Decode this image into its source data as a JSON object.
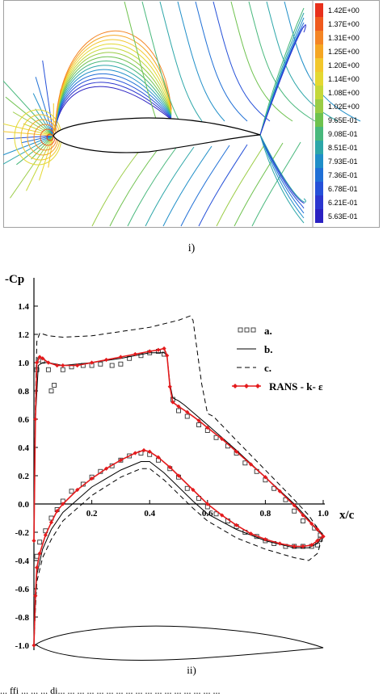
{
  "figure": {
    "caption_i": "i)",
    "caption_ii": "ii)",
    "bottom_caption": "... ffi ... ... ... di... ... ... ... ... ... ... ... ... ... ... ... ... ... ... ... ..."
  },
  "contour_legend": {
    "labels": [
      "1.42E+00",
      "1.37E+00",
      "1.31E+00",
      "1.25E+00",
      "1.20E+00",
      "1.14E+00",
      "1.08E+00",
      "1.02E+00",
      "9.65E-01",
      "9.08E-01",
      "8.51E-01",
      "7.93E-01",
      "7.36E-01",
      "6.78E-01",
      "6.21E-01",
      "5.63E-01"
    ],
    "colors": [
      "#e8301c",
      "#ef5a1e",
      "#f48524",
      "#f5a623",
      "#f2c72c",
      "#e4d832",
      "#c4d83a",
      "#9acc44",
      "#6ec24e",
      "#48b87c",
      "#2ca6a8",
      "#1f8ec8",
      "#1f6fd6",
      "#2550d8",
      "#2b36cf",
      "#2a21c2"
    ]
  },
  "chart_data": {
    "type": "line",
    "ylabel": "-Cp",
    "xlabel": "x/c",
    "xlim": [
      0,
      1.0
    ],
    "ylim": [
      -1.0,
      1.4
    ],
    "xticks": [
      "0.2",
      "0.4",
      "0.6",
      "0.8",
      "1.0"
    ],
    "yticks": [
      "1.4",
      "1.2",
      "1.0",
      "0.8",
      "0.6",
      "0.4",
      "0.2",
      "0.0",
      "-0.2",
      "-0.4",
      "-0.6",
      "-0.8",
      "-1.0"
    ],
    "legend": {
      "position": "top-right",
      "entries": [
        "a.",
        "b.",
        "c.",
        "RANS - k- ε"
      ]
    },
    "series": [
      {
        "name": "a.",
        "style": "square-markers",
        "upper": [
          [
            0.01,
            0.95
          ],
          [
            0.02,
            1.02
          ],
          [
            0.03,
            1.01
          ],
          [
            0.05,
            0.95
          ],
          [
            0.06,
            0.8
          ],
          [
            0.07,
            0.84
          ],
          [
            0.1,
            0.95
          ],
          [
            0.13,
            0.97
          ],
          [
            0.17,
            0.98
          ],
          [
            0.2,
            0.98
          ],
          [
            0.23,
            0.99
          ],
          [
            0.27,
            0.98
          ],
          [
            0.3,
            0.99
          ],
          [
            0.33,
            1.03
          ],
          [
            0.37,
            1.05
          ],
          [
            0.4,
            1.07
          ],
          [
            0.43,
            1.08
          ],
          [
            0.45,
            1.06
          ],
          [
            0.48,
            0.74
          ],
          [
            0.5,
            0.66
          ],
          [
            0.53,
            0.62
          ],
          [
            0.57,
            0.56
          ],
          [
            0.6,
            0.52
          ],
          [
            0.63,
            0.47
          ],
          [
            0.67,
            0.41
          ],
          [
            0.7,
            0.36
          ],
          [
            0.73,
            0.29
          ],
          [
            0.77,
            0.23
          ],
          [
            0.8,
            0.17
          ],
          [
            0.83,
            0.11
          ],
          [
            0.87,
            0.03
          ],
          [
            0.9,
            -0.05
          ],
          [
            0.93,
            -0.12
          ],
          [
            0.97,
            -0.17
          ],
          [
            0.99,
            -0.22
          ]
        ],
        "lower": [
          [
            0.01,
            -0.37
          ],
          [
            0.02,
            -0.27
          ],
          [
            0.04,
            -0.19
          ],
          [
            0.06,
            -0.1
          ],
          [
            0.08,
            -0.04
          ],
          [
            0.1,
            0.02
          ],
          [
            0.13,
            0.09
          ],
          [
            0.17,
            0.14
          ],
          [
            0.2,
            0.19
          ],
          [
            0.23,
            0.23
          ],
          [
            0.27,
            0.27
          ],
          [
            0.3,
            0.31
          ],
          [
            0.33,
            0.34
          ],
          [
            0.37,
            0.36
          ],
          [
            0.4,
            0.35
          ],
          [
            0.43,
            0.31
          ],
          [
            0.47,
            0.25
          ],
          [
            0.5,
            0.19
          ],
          [
            0.53,
            0.11
          ],
          [
            0.57,
            0.04
          ],
          [
            0.6,
            -0.02
          ],
          [
            0.63,
            -0.07
          ],
          [
            0.67,
            -0.12
          ],
          [
            0.7,
            -0.16
          ],
          [
            0.73,
            -0.2
          ],
          [
            0.77,
            -0.23
          ],
          [
            0.8,
            -0.26
          ],
          [
            0.83,
            -0.28
          ],
          [
            0.87,
            -0.3
          ],
          [
            0.9,
            -0.3
          ],
          [
            0.93,
            -0.3
          ],
          [
            0.96,
            -0.3
          ],
          [
            0.98,
            -0.29
          ],
          [
            0.99,
            -0.25
          ]
        ]
      },
      {
        "name": "b.",
        "style": "solid",
        "upper": [
          [
            0.0,
            -0.25
          ],
          [
            0.005,
            0.6
          ],
          [
            0.015,
            0.98
          ],
          [
            0.03,
            1.0
          ],
          [
            0.05,
            1.0
          ],
          [
            0.1,
            0.98
          ],
          [
            0.2,
            1.0
          ],
          [
            0.3,
            1.03
          ],
          [
            0.4,
            1.07
          ],
          [
            0.45,
            1.07
          ],
          [
            0.46,
            1.05
          ],
          [
            0.47,
            0.85
          ],
          [
            0.48,
            0.75
          ],
          [
            0.5,
            0.73
          ],
          [
            0.52,
            0.7
          ],
          [
            0.6,
            0.56
          ],
          [
            0.7,
            0.38
          ],
          [
            0.8,
            0.19
          ],
          [
            0.9,
            0.0
          ],
          [
            0.95,
            -0.11
          ],
          [
            0.98,
            -0.19
          ],
          [
            1.0,
            -0.22
          ]
        ],
        "lower": [
          [
            0.0,
            -1.0
          ],
          [
            0.005,
            -0.7
          ],
          [
            0.01,
            -0.5
          ],
          [
            0.03,
            -0.32
          ],
          [
            0.06,
            -0.18
          ],
          [
            0.1,
            -0.06
          ],
          [
            0.2,
            0.12
          ],
          [
            0.3,
            0.24
          ],
          [
            0.37,
            0.3
          ],
          [
            0.4,
            0.3
          ],
          [
            0.45,
            0.22
          ],
          [
            0.5,
            0.12
          ],
          [
            0.55,
            0.02
          ],
          [
            0.6,
            -0.07
          ],
          [
            0.7,
            -0.18
          ],
          [
            0.8,
            -0.26
          ],
          [
            0.9,
            -0.31
          ],
          [
            0.95,
            -0.31
          ],
          [
            0.98,
            -0.28
          ],
          [
            1.0,
            -0.22
          ]
        ]
      },
      {
        "name": "c.",
        "style": "dashed",
        "upper": [
          [
            0.0,
            -0.25
          ],
          [
            0.005,
            0.7
          ],
          [
            0.01,
            1.15
          ],
          [
            0.02,
            1.21
          ],
          [
            0.05,
            1.19
          ],
          [
            0.1,
            1.18
          ],
          [
            0.2,
            1.19
          ],
          [
            0.3,
            1.22
          ],
          [
            0.4,
            1.25
          ],
          [
            0.5,
            1.3
          ],
          [
            0.54,
            1.33
          ],
          [
            0.55,
            1.3
          ],
          [
            0.58,
            0.85
          ],
          [
            0.6,
            0.64
          ],
          [
            0.62,
            0.62
          ],
          [
            0.7,
            0.45
          ],
          [
            0.8,
            0.24
          ],
          [
            0.9,
            0.03
          ],
          [
            0.95,
            -0.08
          ],
          [
            0.98,
            -0.17
          ],
          [
            1.0,
            -0.22
          ]
        ],
        "lower": [
          [
            0.0,
            -1.0
          ],
          [
            0.005,
            -0.75
          ],
          [
            0.01,
            -0.55
          ],
          [
            0.03,
            -0.38
          ],
          [
            0.06,
            -0.25
          ],
          [
            0.1,
            -0.12
          ],
          [
            0.2,
            0.06
          ],
          [
            0.3,
            0.19
          ],
          [
            0.37,
            0.25
          ],
          [
            0.4,
            0.25
          ],
          [
            0.45,
            0.17
          ],
          [
            0.5,
            0.07
          ],
          [
            0.55,
            -0.03
          ],
          [
            0.6,
            -0.12
          ],
          [
            0.7,
            -0.24
          ],
          [
            0.8,
            -0.32
          ],
          [
            0.9,
            -0.38
          ],
          [
            0.95,
            -0.4
          ],
          [
            0.98,
            -0.35
          ],
          [
            1.0,
            -0.22
          ]
        ]
      },
      {
        "name": "RANS - k- ε",
        "style": "red-diamond-line",
        "color": "#e41a1c",
        "upper": [
          [
            0.0,
            -0.26
          ],
          [
            0.005,
            0.6
          ],
          [
            0.01,
            1.0
          ],
          [
            0.02,
            1.04
          ],
          [
            0.03,
            1.03
          ],
          [
            0.05,
            1.0
          ],
          [
            0.08,
            0.98
          ],
          [
            0.1,
            0.98
          ],
          [
            0.15,
            0.98
          ],
          [
            0.2,
            1.0
          ],
          [
            0.25,
            1.02
          ],
          [
            0.3,
            1.04
          ],
          [
            0.35,
            1.06
          ],
          [
            0.4,
            1.08
          ],
          [
            0.43,
            1.09
          ],
          [
            0.45,
            1.1
          ],
          [
            0.46,
            1.05
          ],
          [
            0.47,
            0.83
          ],
          [
            0.48,
            0.72
          ],
          [
            0.5,
            0.69
          ],
          [
            0.53,
            0.65
          ],
          [
            0.57,
            0.59
          ],
          [
            0.6,
            0.54
          ],
          [
            0.65,
            0.46
          ],
          [
            0.7,
            0.37
          ],
          [
            0.75,
            0.28
          ],
          [
            0.8,
            0.19
          ],
          [
            0.85,
            0.09
          ],
          [
            0.9,
            -0.01
          ],
          [
            0.93,
            -0.08
          ],
          [
            0.96,
            -0.14
          ],
          [
            0.98,
            -0.18
          ],
          [
            1.0,
            -0.23
          ]
        ],
        "lower": [
          [
            0.0,
            -1.0
          ],
          [
            0.005,
            -0.65
          ],
          [
            0.01,
            -0.45
          ],
          [
            0.02,
            -0.35
          ],
          [
            0.04,
            -0.22
          ],
          [
            0.06,
            -0.13
          ],
          [
            0.08,
            -0.05
          ],
          [
            0.1,
            0.0
          ],
          [
            0.15,
            0.1
          ],
          [
            0.2,
            0.18
          ],
          [
            0.25,
            0.25
          ],
          [
            0.3,
            0.31
          ],
          [
            0.35,
            0.36
          ],
          [
            0.38,
            0.38
          ],
          [
            0.4,
            0.37
          ],
          [
            0.43,
            0.33
          ],
          [
            0.47,
            0.26
          ],
          [
            0.5,
            0.2
          ],
          [
            0.55,
            0.1
          ],
          [
            0.6,
            0.0
          ],
          [
            0.65,
            -0.08
          ],
          [
            0.7,
            -0.15
          ],
          [
            0.75,
            -0.21
          ],
          [
            0.8,
            -0.25
          ],
          [
            0.85,
            -0.28
          ],
          [
            0.9,
            -0.3
          ],
          [
            0.93,
            -0.3
          ],
          [
            0.96,
            -0.29
          ],
          [
            0.98,
            -0.26
          ],
          [
            1.0,
            -0.23
          ]
        ]
      }
    ]
  }
}
